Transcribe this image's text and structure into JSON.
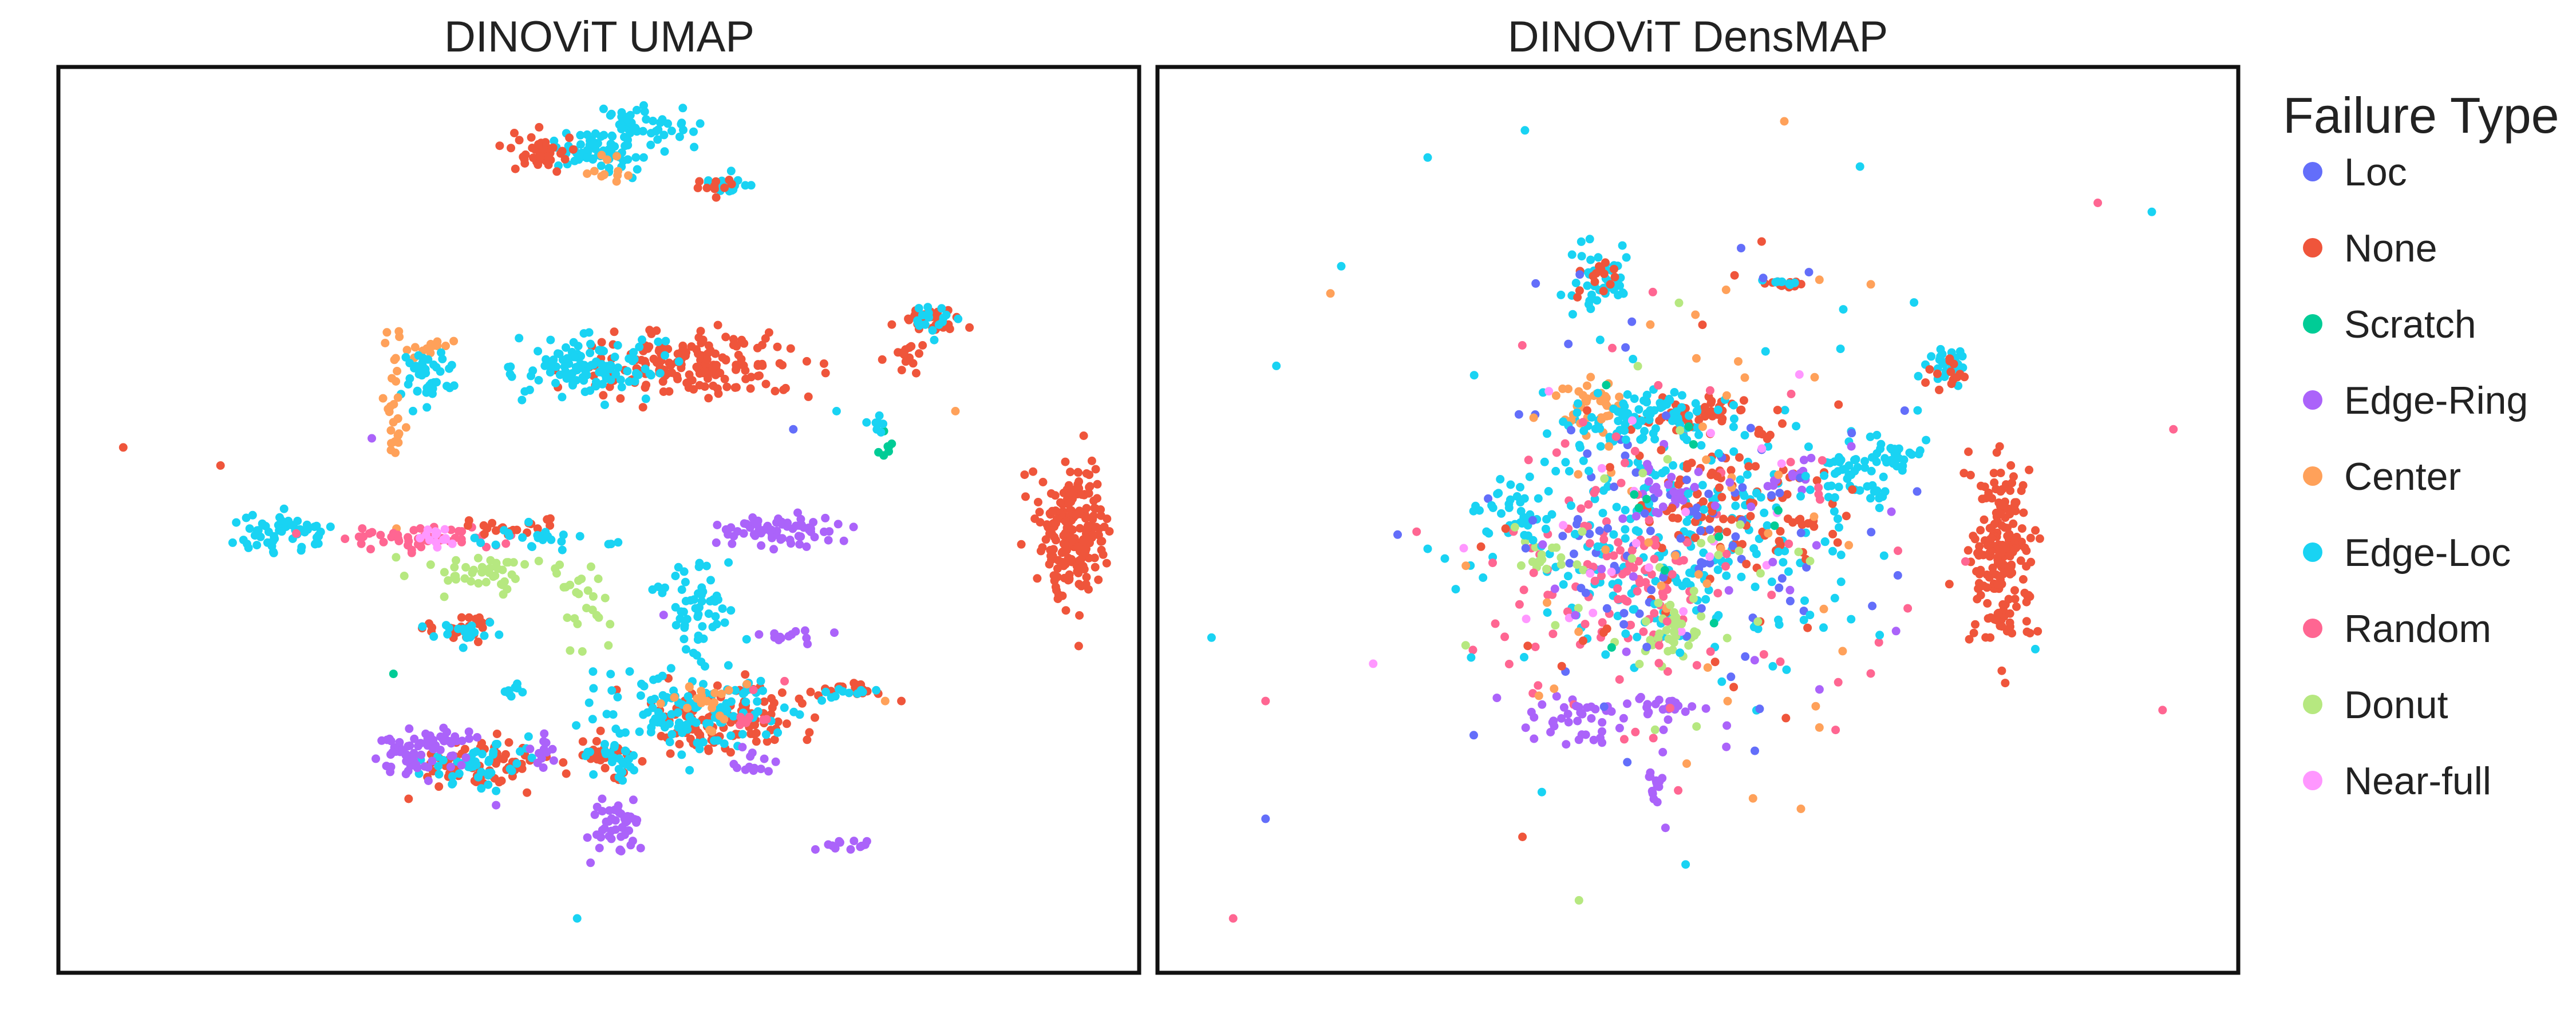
{
  "chart_data": {
    "type": "scatter",
    "legend": {
      "title": "Failure Type",
      "placement": "right",
      "entries": [
        {
          "label": "Loc",
          "color": "#636EFA"
        },
        {
          "label": "None",
          "color": "#EF553B"
        },
        {
          "label": "Scratch",
          "color": "#00CC96"
        },
        {
          "label": "Edge-Ring",
          "color": "#AB63FA"
        },
        {
          "label": "Center",
          "color": "#FFA15A"
        },
        {
          "label": "Edge-Loc",
          "color": "#19D3F3"
        },
        {
          "label": "Random",
          "color": "#FF6692"
        },
        {
          "label": "Donut",
          "color": "#B6E880"
        },
        {
          "label": "Near-full",
          "color": "#FF97FF"
        }
      ]
    },
    "panels": [
      {
        "title": "DINOViT UMAP",
        "xlim": [
          0,
          100
        ],
        "ylim": [
          0,
          100
        ],
        "axes_visible": false,
        "grid": false,
        "clusters": [
          {
            "cls": "None",
            "cx": 39,
            "cy": 23,
            "rx": 6,
            "ry": 2.5,
            "n": 70
          },
          {
            "cls": "Edge-Loc",
            "cx": 39,
            "cy": 23,
            "rx": 5,
            "ry": 2,
            "n": 45
          },
          {
            "cls": "None",
            "cx": 51,
            "cy": 24,
            "rx": 2.8,
            "ry": 1.8,
            "n": 30
          },
          {
            "cls": "Edge-Loc",
            "cx": 51,
            "cy": 24,
            "rx": 2.5,
            "ry": 1.6,
            "n": 25
          },
          {
            "cls": "Edge-Loc",
            "cx": 42,
            "cy": 31,
            "rx": 0.8,
            "ry": 0.7,
            "n": 8
          },
          {
            "cls": "None",
            "cx": 73,
            "cy": 31,
            "rx": 2.8,
            "ry": 0.7,
            "n": 18
          },
          {
            "cls": "Edge-Loc",
            "cx": 73,
            "cy": 31,
            "rx": 2.2,
            "ry": 0.6,
            "n": 10
          },
          {
            "cls": "None",
            "cx": 59,
            "cy": 67,
            "rx": 10,
            "ry": 3.2,
            "n": 170
          },
          {
            "cls": "Edge-Loc",
            "cx": 49,
            "cy": 67,
            "rx": 6,
            "ry": 3,
            "n": 110
          },
          {
            "cls": "Center",
            "cx": 34,
            "cy": 69,
            "rx": 2,
            "ry": 1.5,
            "n": 12
          },
          {
            "cls": "Edge-Loc",
            "cx": 34,
            "cy": 66,
            "rx": 2.5,
            "ry": 3,
            "n": 40
          },
          {
            "cls": "Center",
            "cx": 31,
            "cy": 62,
            "rx": 1,
            "ry": 8,
            "n": 30
          },
          {
            "cls": "None",
            "cx": 81,
            "cy": 72,
            "rx": 2.8,
            "ry": 1.5,
            "n": 30
          },
          {
            "cls": "Edge-Loc",
            "cx": 81,
            "cy": 72,
            "rx": 2.4,
            "ry": 1.3,
            "n": 20
          },
          {
            "cls": "None",
            "cx": 78.5,
            "cy": 68,
            "rx": 1.6,
            "ry": 1.6,
            "n": 16
          },
          {
            "cls": "None",
            "cx": 94,
            "cy": 49,
            "rx": 2.8,
            "ry": 7,
            "n": 200
          },
          {
            "cls": "Edge-Ring",
            "cx": 67,
            "cy": 49,
            "rx": 4.8,
            "ry": 1.7,
            "n": 70
          },
          {
            "cls": "Edge-Loc",
            "cx": 21,
            "cy": 48.5,
            "rx": 4,
            "ry": 2,
            "n": 55
          },
          {
            "cls": "Random",
            "cx": 34,
            "cy": 48,
            "rx": 8,
            "ry": 1,
            "n": 55
          },
          {
            "cls": "None",
            "cx": 42,
            "cy": 49,
            "rx": 6,
            "ry": 0.8,
            "n": 20
          },
          {
            "cls": "Edge-Loc",
            "cx": 45,
            "cy": 48,
            "rx": 6,
            "ry": 1.5,
            "n": 25
          },
          {
            "cls": "Near-full",
            "cx": 35,
            "cy": 48,
            "rx": 1.3,
            "ry": 1,
            "n": 15
          },
          {
            "cls": "Donut",
            "cx": 40,
            "cy": 44,
            "rx": 7,
            "ry": 2,
            "n": 50
          },
          {
            "cls": "Donut",
            "cx": 49,
            "cy": 40,
            "rx": 2.5,
            "ry": 5,
            "n": 20
          },
          {
            "cls": "Edge-Loc",
            "cx": 59,
            "cy": 41,
            "rx": 3.5,
            "ry": 5,
            "n": 55
          },
          {
            "cls": "None",
            "cx": 37,
            "cy": 38,
            "rx": 3.2,
            "ry": 1.3,
            "n": 30
          },
          {
            "cls": "Edge-Loc",
            "cx": 37,
            "cy": 38,
            "rx": 3,
            "ry": 1.2,
            "n": 20
          },
          {
            "cls": "None",
            "cx": 62,
            "cy": 28,
            "rx": 7,
            "ry": 3.5,
            "n": 110
          },
          {
            "cls": "Edge-Loc",
            "cx": 59,
            "cy": 29,
            "rx": 9,
            "ry": 4.5,
            "n": 130
          },
          {
            "cls": "Center",
            "cx": 60,
            "cy": 30,
            "rx": 5,
            "ry": 3,
            "n": 20
          },
          {
            "cls": "Random",
            "cx": 64,
            "cy": 29,
            "rx": 4,
            "ry": 3,
            "n": 10
          },
          {
            "cls": "Edge-Ring",
            "cx": 68,
            "cy": 37,
            "rx": 2.2,
            "ry": 0.7,
            "n": 14
          },
          {
            "cls": "Edge-Ring",
            "cx": 33,
            "cy": 24,
            "rx": 3.5,
            "ry": 2.3,
            "n": 55
          },
          {
            "cls": "Edge-Ring",
            "cx": 36,
            "cy": 26,
            "rx": 2,
            "ry": 0.6,
            "n": 14
          },
          {
            "cls": "Edge-Ring",
            "cx": 45,
            "cy": 25,
            "rx": 1,
            "ry": 2,
            "n": 12
          },
          {
            "cls": "Edge-Ring",
            "cx": 51.5,
            "cy": 16,
            "rx": 2.2,
            "ry": 2.6,
            "n": 45
          },
          {
            "cls": "Edge-Ring",
            "cx": 64,
            "cy": 23,
            "rx": 2,
            "ry": 1.2,
            "n": 14
          },
          {
            "cls": "Edge-Ring",
            "cx": 73,
            "cy": 14,
            "rx": 3,
            "ry": 0.7,
            "n": 12
          },
          {
            "cls": "Edge-Loc",
            "cx": 50,
            "cy": 91,
            "rx": 4,
            "ry": 2.2,
            "n": 70
          },
          {
            "cls": "None",
            "cx": 44,
            "cy": 90.5,
            "rx": 3,
            "ry": 2,
            "n": 45
          },
          {
            "cls": "Center",
            "cx": 51,
            "cy": 89,
            "rx": 2.5,
            "ry": 1.5,
            "n": 12
          },
          {
            "cls": "Edge-Loc",
            "cx": 54,
            "cy": 93.5,
            "rx": 3.5,
            "ry": 2,
            "n": 45
          },
          {
            "cls": "Edge-Loc",
            "cx": 61.5,
            "cy": 87,
            "rx": 2.5,
            "ry": 1,
            "n": 18
          },
          {
            "cls": "None",
            "cx": 61.5,
            "cy": 87,
            "rx": 2,
            "ry": 0.8,
            "n": 10
          },
          {
            "cls": "Scratch",
            "cx": 76.5,
            "cy": 58,
            "rx": 0.7,
            "ry": 1,
            "n": 7
          },
          {
            "cls": "Edge-Loc",
            "cx": 76,
            "cy": 60.5,
            "rx": 0.6,
            "ry": 0.9,
            "n": 8
          }
        ],
        "scatter_points": [
          {
            "cls": "None",
            "x": 6,
            "y": 58
          },
          {
            "cls": "None",
            "x": 15,
            "y": 56
          },
          {
            "cls": "Edge-Ring",
            "x": 29,
            "y": 59
          },
          {
            "cls": "Scratch",
            "x": 31,
            "y": 33
          },
          {
            "cls": "Edge-Loc",
            "x": 72,
            "y": 62
          },
          {
            "cls": "Center",
            "x": 83,
            "y": 62
          },
          {
            "cls": "None",
            "x": 78,
            "y": 30
          },
          {
            "cls": "Edge-Loc",
            "x": 71,
            "y": 31
          },
          {
            "cls": "Edge-Ring",
            "x": 40.5,
            "y": 18.5
          },
          {
            "cls": "Edge-Loc",
            "x": 48,
            "y": 6
          },
          {
            "cls": "Center",
            "x": 76.5,
            "y": 30
          },
          {
            "cls": "Edge-Ring",
            "x": 56,
            "y": 39.5
          },
          {
            "cls": "Loc",
            "x": 68,
            "y": 60
          }
        ]
      },
      {
        "title": "DINOViT DensMAP",
        "xlim": [
          0,
          100
        ],
        "ylim": [
          0,
          100
        ],
        "axes_visible": false,
        "grid": false,
        "clusters": [
          {
            "cls": "Edge-Loc",
            "cx": 49,
            "cy": 49,
            "rx": 14,
            "ry": 12,
            "n": 230
          },
          {
            "cls": "None",
            "cx": 53,
            "cy": 52,
            "rx": 9,
            "ry": 8,
            "n": 100
          },
          {
            "cls": "Random",
            "cx": 43,
            "cy": 43,
            "rx": 8,
            "ry": 7,
            "n": 80
          },
          {
            "cls": "Donut",
            "cx": 48,
            "cy": 37,
            "rx": 3,
            "ry": 2.5,
            "n": 30
          },
          {
            "cls": "Donut",
            "cx": 36,
            "cy": 46,
            "rx": 3,
            "ry": 2,
            "n": 15
          },
          {
            "cls": "Center",
            "cx": 40,
            "cy": 63,
            "rx": 3,
            "ry": 3,
            "n": 35
          },
          {
            "cls": "Loc",
            "cx": 47,
            "cy": 48,
            "rx": 12,
            "ry": 12,
            "n": 50
          },
          {
            "cls": "Edge-Ring",
            "cx": 39,
            "cy": 28,
            "rx": 4,
            "ry": 2.5,
            "n": 40
          },
          {
            "cls": "Edge-Ring",
            "cx": 47,
            "cy": 29,
            "rx": 2.5,
            "ry": 2,
            "n": 20
          },
          {
            "cls": "Edge-Ring",
            "cx": 47,
            "cy": 53,
            "rx": 3,
            "ry": 3,
            "n": 25
          },
          {
            "cls": "Edge-Ring",
            "cx": 59,
            "cy": 55,
            "rx": 2,
            "ry": 1.5,
            "n": 12
          },
          {
            "cls": "Edge-Ring",
            "cx": 46,
            "cy": 21,
            "rx": 0.8,
            "ry": 2.5,
            "n": 15
          },
          {
            "cls": "None",
            "cx": 49,
            "cy": 62,
            "rx": 5,
            "ry": 1.8,
            "n": 50
          },
          {
            "cls": "Edge-Loc",
            "cx": 47,
            "cy": 62,
            "rx": 5,
            "ry": 2,
            "n": 45
          },
          {
            "cls": "None",
            "cx": 78,
            "cy": 46,
            "rx": 2.5,
            "ry": 9,
            "n": 200
          },
          {
            "cls": "Edge-Loc",
            "cx": 41,
            "cy": 76,
            "rx": 2.5,
            "ry": 3,
            "n": 45
          },
          {
            "cls": "None",
            "cx": 41,
            "cy": 77,
            "rx": 2,
            "ry": 2,
            "n": 14
          },
          {
            "cls": "None",
            "cx": 58,
            "cy": 76,
            "rx": 1.8,
            "ry": 0.6,
            "n": 12
          },
          {
            "cls": "Edge-Loc",
            "cx": 58,
            "cy": 76,
            "rx": 1.5,
            "ry": 0.5,
            "n": 8
          },
          {
            "cls": "Edge-Loc",
            "cx": 73,
            "cy": 67,
            "rx": 1.8,
            "ry": 2.2,
            "n": 28
          },
          {
            "cls": "None",
            "cx": 73,
            "cy": 66,
            "rx": 1.5,
            "ry": 1.5,
            "n": 14
          },
          {
            "cls": "Edge-Loc",
            "cx": 64,
            "cy": 55,
            "rx": 3,
            "ry": 3,
            "n": 40
          },
          {
            "cls": "Edge-Loc",
            "cx": 68,
            "cy": 57,
            "rx": 2.5,
            "ry": 2,
            "n": 25
          },
          {
            "cls": "Edge-Loc",
            "cx": 33,
            "cy": 51,
            "rx": 3,
            "ry": 3,
            "n": 35
          },
          {
            "cls": "Edge-Loc",
            "cx": 42,
            "cy": 60,
            "rx": 4,
            "ry": 2.5,
            "n": 35
          },
          {
            "cls": "Random",
            "cx": 49,
            "cy": 47,
            "rx": 20,
            "ry": 24,
            "n": 70
          },
          {
            "cls": "Loc",
            "cx": 49,
            "cy": 48,
            "rx": 20,
            "ry": 24,
            "n": 50
          },
          {
            "cls": "Edge-Loc",
            "cx": 49,
            "cy": 48,
            "rx": 20,
            "ry": 24,
            "n": 55
          },
          {
            "cls": "Center",
            "cx": 49,
            "cy": 48,
            "rx": 20,
            "ry": 24,
            "n": 45
          },
          {
            "cls": "None",
            "cx": 49,
            "cy": 48,
            "rx": 20,
            "ry": 24,
            "n": 30
          },
          {
            "cls": "Near-full",
            "cx": 43,
            "cy": 46,
            "rx": 14,
            "ry": 14,
            "n": 25
          },
          {
            "cls": "Donut",
            "cx": 46,
            "cy": 44,
            "rx": 16,
            "ry": 16,
            "n": 35
          },
          {
            "cls": "Edge-Ring",
            "cx": 49,
            "cy": 44,
            "rx": 16,
            "ry": 18,
            "n": 25
          },
          {
            "cls": "Scratch",
            "cx": 49,
            "cy": 46,
            "rx": 16,
            "ry": 18,
            "n": 12
          }
        ],
        "scatter_points": [
          {
            "cls": "Edge-Loc",
            "x": 34,
            "y": 93
          },
          {
            "cls": "Center",
            "x": 58,
            "y": 94
          },
          {
            "cls": "Edge-Loc",
            "x": 25,
            "y": 90
          },
          {
            "cls": "Edge-Loc",
            "x": 65,
            "y": 89
          },
          {
            "cls": "Random",
            "x": 87,
            "y": 85
          },
          {
            "cls": "Edge-Loc",
            "x": 92,
            "y": 84
          },
          {
            "cls": "Random",
            "x": 94,
            "y": 60
          },
          {
            "cls": "Random",
            "x": 93,
            "y": 29
          },
          {
            "cls": "Random",
            "x": 7,
            "y": 6
          },
          {
            "cls": "Loc",
            "x": 10,
            "y": 17
          },
          {
            "cls": "Edge-Loc",
            "x": 5,
            "y": 37
          },
          {
            "cls": "Edge-Loc",
            "x": 11,
            "y": 67
          },
          {
            "cls": "Random",
            "x": 10,
            "y": 30
          },
          {
            "cls": "Edge-Loc",
            "x": 17,
            "y": 78
          },
          {
            "cls": "Center",
            "x": 16,
            "y": 75
          },
          {
            "cls": "Edge-Loc",
            "x": 40,
            "y": 81
          },
          {
            "cls": "Loc",
            "x": 54,
            "y": 80
          },
          {
            "cls": "Edge-Ring",
            "x": 47,
            "y": 16
          },
          {
            "cls": "Donut",
            "x": 39,
            "y": 8
          },
          {
            "cls": "Center",
            "x": 66,
            "y": 76
          },
          {
            "cls": "Edge-Loc",
            "x": 70,
            "y": 74
          }
        ]
      }
    ]
  }
}
